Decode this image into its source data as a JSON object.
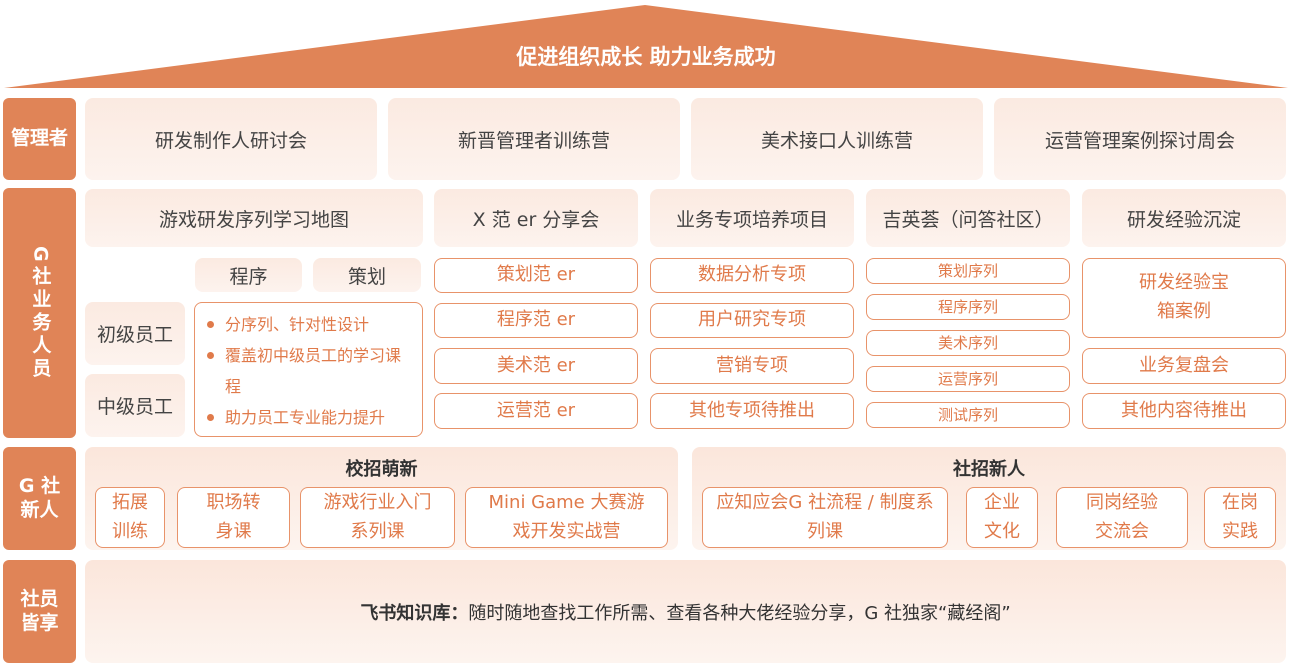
{
  "roof": "促进组织成长 助力业务成功",
  "rows": {
    "managers": {
      "label": "管理者",
      "items": [
        "研发制作人研讨会",
        "新晋管理者训练营",
        "美术接口人训练营",
        "运营管理案例探讨周会"
      ]
    },
    "business": {
      "label": "G社业务人员",
      "headers": [
        "游戏研发序列学习地图",
        "X 范 er 分享会",
        "业务专项培养项目",
        "吉英荟（问答社区）",
        "研发经验沉淀"
      ],
      "tracks": [
        "程序",
        "策划"
      ],
      "levels": [
        "初级员工",
        "中级员工"
      ],
      "bullets": [
        "分序列、针对性设计",
        "覆盖初中级员工的学习课程",
        "助力员工专业能力提升"
      ],
      "fan_er": [
        "策划范 er",
        "程序范 er",
        "美术范 er",
        "运营范 er"
      ],
      "projects": [
        "数据分析专项",
        "用户研究专项",
        "营销专项",
        "其他专项待推出"
      ],
      "community": [
        "策划序列",
        "程序序列",
        "美术序列",
        "运营序列",
        "测试序列"
      ],
      "experience": [
        "研发经验宝箱案例",
        "业务复盘会",
        "其他内容待推出"
      ]
    },
    "newcomers": {
      "label": "G 社新人",
      "campus": {
        "title": "校招萌新",
        "items": [
          "拓展训练",
          "职场转身课",
          "游戏行业入门系列课",
          "Mini Game 大赛游戏开发实战营"
        ]
      },
      "social": {
        "title": "社招新人",
        "items": [
          "应知应会G 社流程 / 制度系列课",
          "企业文化",
          "同岗经验交流会",
          "在岗实践"
        ]
      }
    },
    "all": {
      "label": "社员皆享",
      "title": "飞书知识库：",
      "text": "随时随地查找工作所需、查看各种大佬经验分享，G 社独家“藏经阁”"
    }
  },
  "colors": {
    "accent": "#e08457",
    "text_accent": "#e07a4a"
  }
}
